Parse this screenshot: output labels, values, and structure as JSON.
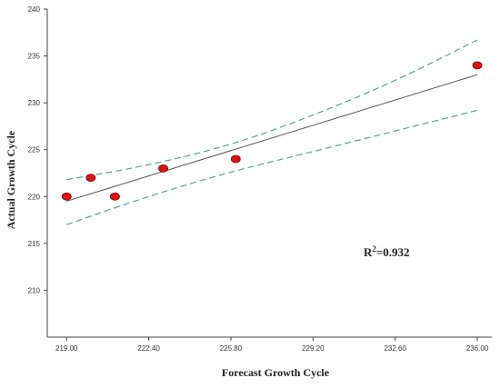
{
  "chart_data": {
    "type": "scatter",
    "title": "",
    "xlabel": "Forecast Growth Cycle",
    "ylabel": "Actual Growth Cycle",
    "xlim": [
      218.2,
      236.6
    ],
    "ylim": [
      205,
      240
    ],
    "x_ticks": [
      "219.00",
      "222.40",
      "225.80",
      "229.20",
      "232.60",
      "236.00"
    ],
    "y_ticks": [
      "210",
      "215",
      "220",
      "225",
      "230",
      "235",
      "240"
    ],
    "points": [
      {
        "x": 219.0,
        "y": 220
      },
      {
        "x": 220.0,
        "y": 222
      },
      {
        "x": 221.0,
        "y": 220
      },
      {
        "x": 223.0,
        "y": 223
      },
      {
        "x": 226.0,
        "y": 224
      },
      {
        "x": 236.0,
        "y": 234
      }
    ],
    "fit_line": {
      "x": [
        219.0,
        236.0
      ],
      "y": [
        219.5,
        233.0
      ]
    },
    "confidence_band": {
      "x": [
        219.0,
        222.4,
        225.8,
        229.2,
        232.6,
        236.0
      ],
      "upper": [
        221.8,
        223.4,
        225.6,
        228.7,
        232.4,
        236.7
      ],
      "lower": [
        217.0,
        220.0,
        222.6,
        224.8,
        227.0,
        229.2
      ]
    },
    "annotation": {
      "label": "R",
      "sup": "2",
      "value": "=0.932"
    },
    "grid": false,
    "colors": {
      "point_fill": "#dd1111",
      "point_stroke": "#7a0000",
      "fit_line": "#555555",
      "band": "#5aa38a",
      "axis": "#444444"
    }
  }
}
